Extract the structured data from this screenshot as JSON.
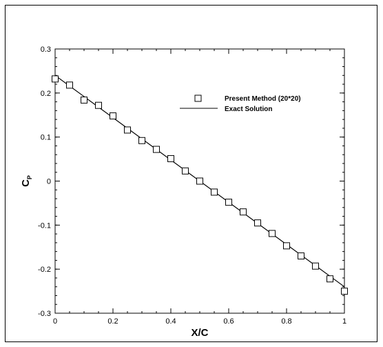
{
  "chart_data": {
    "type": "scatter",
    "xlabel": "X/C",
    "ylabel": "C",
    "ylabel_sub": "P",
    "xlim": [
      0,
      1
    ],
    "ylim": [
      -0.3,
      0.3
    ],
    "x_ticks": [
      "0",
      "0.2",
      "0.4",
      "0.6",
      "0.8",
      "1"
    ],
    "x_tick_values": [
      0,
      0.2,
      0.4,
      0.6,
      0.8,
      1
    ],
    "y_ticks": [
      "0.3",
      "0.2",
      "0.1",
      "0",
      "-0.1",
      "-0.2",
      "-0.3"
    ],
    "y_tick_values": [
      0.3,
      0.2,
      0.1,
      0,
      -0.1,
      -0.2,
      -0.3
    ],
    "x_minor_step": 0.05,
    "y_minor_step": 0.02,
    "grid": false,
    "legend_position": "top-right",
    "series": [
      {
        "name": "Present Method (20*20)",
        "marker": "open-square",
        "x": [
          0,
          0.05,
          0.1,
          0.15,
          0.2,
          0.25,
          0.3,
          0.35,
          0.4,
          0.45,
          0.5,
          0.55,
          0.6,
          0.65,
          0.7,
          0.75,
          0.8,
          0.85,
          0.9,
          0.95,
          1.0
        ],
        "y": [
          0.232,
          0.218,
          0.184,
          0.172,
          0.148,
          0.116,
          0.092,
          0.072,
          0.051,
          0.023,
          0.0,
          -0.025,
          -0.048,
          -0.07,
          -0.095,
          -0.119,
          -0.147,
          -0.17,
          -0.193,
          -0.222,
          -0.25
        ]
      },
      {
        "name": "Exact Solution",
        "marker": "line",
        "x": [
          0,
          1
        ],
        "y": [
          0.24,
          -0.24
        ]
      }
    ]
  }
}
